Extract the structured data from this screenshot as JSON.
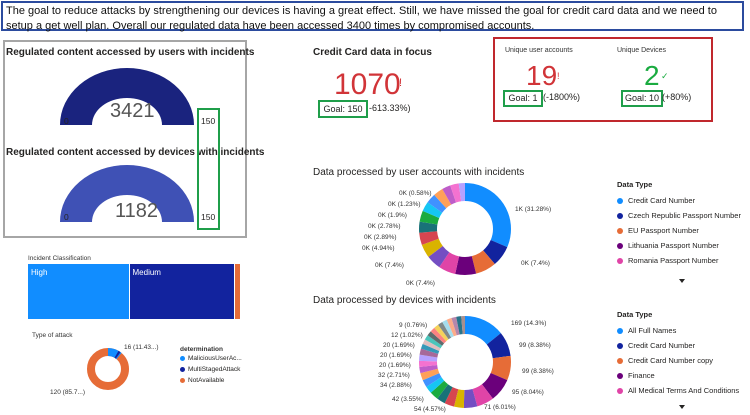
{
  "banner": {
    "text": "The goal to reduce attacks by strengthening our devices is having a great effect. Still, we have missed the goal for credit card data and we need to setup a get well plan. Overall our regulated data have been accessed 3400 times by compromised accounts."
  },
  "gauges": {
    "users": {
      "title": "Regulated content accessed by users with incidents",
      "value": "3421",
      "min": "0",
      "max": "150",
      "fill_fraction": 1.0,
      "color": "#1a237e"
    },
    "devices": {
      "title": "Regulated content accessed by devices with incidents",
      "value": "1182",
      "min": "0",
      "max": "150",
      "fill_fraction": 1.0,
      "color": "#3f51b5"
    }
  },
  "credit_card": {
    "title": "Credit Card data in focus",
    "value": "1070",
    "indicator": "!",
    "goal_label": "Goal: 150",
    "delta": "-613.33%)"
  },
  "kpis": {
    "unique_users": {
      "label": "Unique user accounts",
      "value": "19",
      "indicator": "!",
      "goal_label": "Goal: 1",
      "delta": "(-1800%)"
    },
    "unique_devices": {
      "label": "Unique Devices",
      "value": "2",
      "indicator": "✓",
      "goal_label": "Goal: 10",
      "delta": "(+80%)"
    }
  },
  "incident_classification": {
    "title": "Incident Classification",
    "segments": [
      {
        "label": "High",
        "share": 0.135,
        "color": "#118dff"
      },
      {
        "label": "Medium",
        "share": 0.14,
        "color": "#12239e"
      },
      {
        "label": "",
        "share": 0.007,
        "color": "#e66c37"
      }
    ]
  },
  "type_of_attack": {
    "title": "Type of attack",
    "legend_title": "determination",
    "legend": [
      {
        "label": "MaliciousUserAc...",
        "color": "#118dff"
      },
      {
        "label": "MultiStagedAttack",
        "color": "#12239e"
      },
      {
        "label": "NotAvailable",
        "color": "#e66c37"
      }
    ],
    "labels": [
      "16 (11.43...)",
      "120 (85.7...)"
    ]
  },
  "donut_users": {
    "title": "Data processed by user accounts with incidents",
    "legend_title": "Data Type",
    "legend": [
      {
        "label": "Credit Card Number",
        "color": "#118dff"
      },
      {
        "label": "Czech Republic Passport Number",
        "color": "#12239e"
      },
      {
        "label": "EU Passport Number",
        "color": "#e66c37"
      },
      {
        "label": "Lithuania Passport Number",
        "color": "#6b007b"
      },
      {
        "label": "Romania Passport Number",
        "color": "#e044a7"
      }
    ],
    "labels": [
      "0K (0.58%)",
      "0K (1.23%)",
      "0K (1.9%)",
      "0K (2.78%)",
      "0K (2.89%)",
      "0K (4.94%)",
      "0K (7.4%)",
      "0K (7.4%)",
      "0K (7.4%)",
      "1K (31.28%)"
    ]
  },
  "donut_devices": {
    "title": "Data processed by devices with incidents",
    "legend_title": "Data Type",
    "legend": [
      {
        "label": "All Full Names",
        "color": "#118dff"
      },
      {
        "label": "Credit Card Number",
        "color": "#12239e"
      },
      {
        "label": "Credit Card Number copy",
        "color": "#e66c37"
      },
      {
        "label": "Finance",
        "color": "#6b007b"
      },
      {
        "label": "All Medical Terms And Conditions",
        "color": "#e044a7"
      }
    ],
    "labels": [
      "9 (0.76%)",
      "12 (1.02%)",
      "20 (1.69%)",
      "20 (1.69%)",
      "20 (1.69%)",
      "32 (2.71%)",
      "34 (2.88%)",
      "42 (3.55%)",
      "54 (4.57%)",
      "169 (14.3%)",
      "99 (8.38%)",
      "99 (8.38%)",
      "95 (8.04%)",
      "71 (6.01%)"
    ]
  },
  "colors": {
    "accent_blue": "#118dff",
    "dark_blue": "#12239e",
    "orange": "#e66c37",
    "kpi_red": "#d13438",
    "kpi_green": "#1aab40"
  }
}
